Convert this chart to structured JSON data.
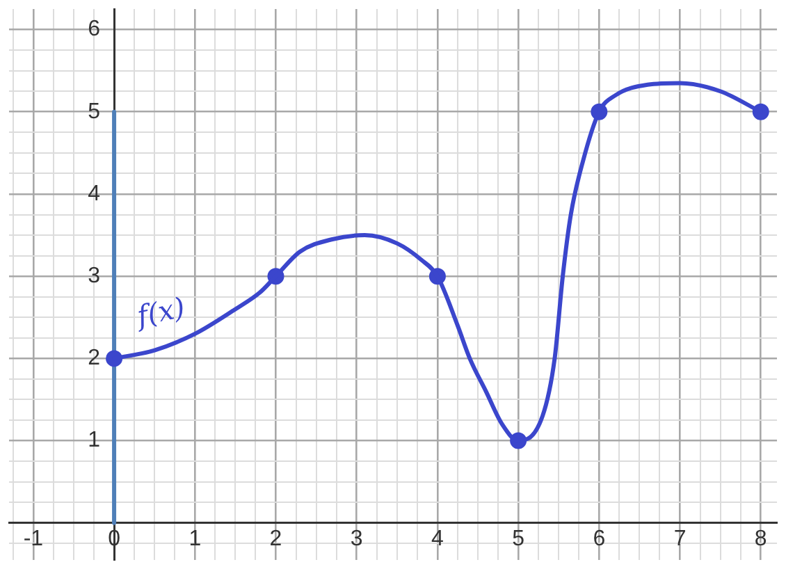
{
  "chart_data": {
    "type": "line",
    "xlim": [
      -1.3,
      8.2
    ],
    "ylim": [
      -0.45,
      6.25
    ],
    "xticks": [
      {
        "value": -1.25,
        "label": null
      },
      -1,
      {
        "value": -0.75,
        "label": null
      },
      {
        "value": -0.5,
        "label": null
      },
      {
        "value": -0.25,
        "label": null
      },
      0,
      {
        "value": 0.25,
        "label": null
      },
      {
        "value": 0.5,
        "label": null
      },
      {
        "value": 0.75,
        "label": null
      },
      1,
      {
        "value": 1.25,
        "label": null
      },
      {
        "value": 1.5,
        "label": null
      },
      {
        "value": 1.75,
        "label": null
      },
      2,
      {
        "value": 2.25,
        "label": null
      },
      {
        "value": 2.5,
        "label": null
      },
      {
        "value": 2.75,
        "label": null
      },
      3,
      {
        "value": 3.25,
        "label": null
      },
      {
        "value": 3.5,
        "label": null
      },
      {
        "value": 3.75,
        "label": null
      },
      4,
      {
        "value": 4.25,
        "label": null
      },
      {
        "value": 4.5,
        "label": null
      },
      {
        "value": 4.75,
        "label": null
      },
      5,
      {
        "value": 5.25,
        "label": null
      },
      {
        "value": 5.5,
        "label": null
      },
      {
        "value": 5.75,
        "label": null
      },
      6,
      {
        "value": 6.25,
        "label": null
      },
      {
        "value": 6.5,
        "label": null
      },
      {
        "value": 6.75,
        "label": null
      },
      7,
      {
        "value": 7.25,
        "label": null
      },
      {
        "value": 7.5,
        "label": null
      },
      {
        "value": 7.75,
        "label": null
      },
      8
    ],
    "yticks": [
      {
        "value": -0.25,
        "label": null
      },
      {
        "value": 0,
        "label": null
      },
      {
        "value": 0.25,
        "label": null
      },
      {
        "value": 0.5,
        "label": null
      },
      {
        "value": 0.75,
        "label": null
      },
      1,
      {
        "value": 1.25,
        "label": null
      },
      {
        "value": 1.5,
        "label": null
      },
      {
        "value": 1.75,
        "label": null
      },
      2,
      {
        "value": 2.25,
        "label": null
      },
      {
        "value": 2.5,
        "label": null
      },
      {
        "value": 2.75,
        "label": null
      },
      3,
      {
        "value": 3.25,
        "label": null
      },
      {
        "value": 3.5,
        "label": null
      },
      {
        "value": 3.75,
        "label": null
      },
      4,
      {
        "value": 4.25,
        "label": null
      },
      {
        "value": 4.5,
        "label": null
      },
      {
        "value": 4.75,
        "label": null
      },
      5,
      {
        "value": 5.25,
        "label": null
      },
      {
        "value": 5.5,
        "label": null
      },
      {
        "value": 5.75,
        "label": null
      },
      6
    ],
    "grid": true,
    "legend": false,
    "line_style": "solid",
    "annotations": [
      "f(x)"
    ],
    "series": [
      {
        "type": "line",
        "marker": "none",
        "color": "#3b46cc",
        "x": [
          0,
          0.5,
          1,
          1.5,
          1.8,
          2,
          2.3,
          2.7,
          3.1,
          3.5,
          3.8,
          4,
          4.25,
          4.4,
          4.6,
          4.8,
          5,
          5.3,
          5.45,
          5.55,
          5.65,
          5.8,
          6,
          6.2,
          6.6,
          7,
          7.5,
          8
        ],
        "values": [
          2.0,
          2.1,
          2.3,
          2.6,
          2.8,
          3.0,
          3.3,
          3.45,
          3.5,
          3.4,
          3.2,
          3.0,
          2.4,
          2.0,
          1.6,
          1.2,
          1.0,
          1.3,
          2.0,
          3.0,
          3.75,
          4.4,
          5.0,
          5.2,
          5.33,
          5.35,
          5.25,
          5.0
        ]
      },
      {
        "type": "scatter",
        "marker": "circle",
        "color": "#3b46cc",
        "x": [
          0,
          2,
          4,
          5,
          6,
          8
        ],
        "values": [
          2,
          3,
          3,
          1,
          5,
          5
        ]
      },
      {
        "type": "line",
        "marker": "none",
        "color": "#4f7fb8",
        "x": [
          0,
          0
        ],
        "values": [
          0,
          5
        ]
      }
    ]
  }
}
